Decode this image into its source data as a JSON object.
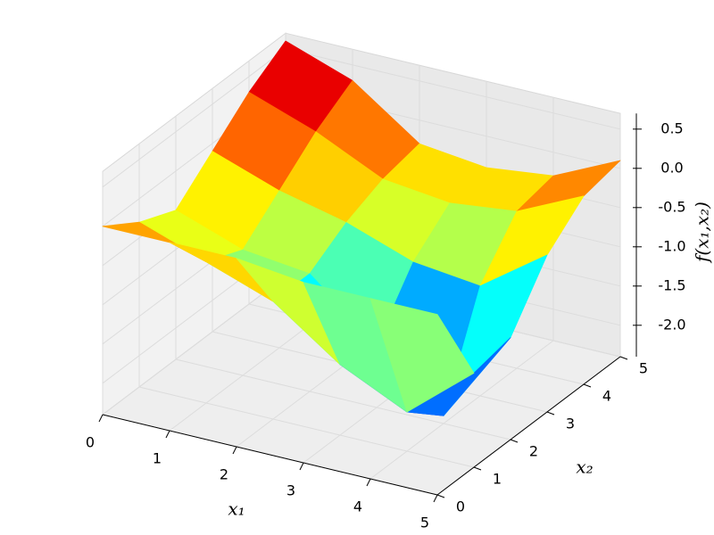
{
  "chart_data": {
    "type": "surface",
    "x_label": "x₁",
    "y_label": "x₂",
    "z_label": "f(x₁,x₂)",
    "x": [
      0,
      1,
      2,
      3,
      4,
      5
    ],
    "y": [
      0,
      1,
      2,
      3,
      4,
      5
    ],
    "z": [
      [
        0.0,
        0.0,
        0.0,
        -0.1,
        -0.1,
        -0.1
      ],
      [
        -0.3,
        -0.6,
        -0.9,
        -1.5,
        -1.9,
        -1.2
      ],
      [
        -0.5,
        -0.8,
        -0.9,
        -1.6,
        -2.3,
        -1.1
      ],
      [
        -0.1,
        -0.4,
        -0.6,
        -0.9,
        -1.0,
        -0.4
      ],
      [
        0.3,
        0.0,
        -0.4,
        -0.5,
        -0.4,
        0.0
      ],
      [
        0.6,
        0.3,
        -0.3,
        -0.4,
        -0.3,
        0.1
      ]
    ],
    "xlim": [
      0,
      5
    ],
    "ylim": [
      0,
      5
    ],
    "zlim": [
      -2.4,
      0.7
    ],
    "xticks": [
      0,
      1,
      2,
      3,
      4,
      5
    ],
    "yticks": [
      0,
      1,
      2,
      3,
      4,
      5
    ],
    "zticks": [
      {
        "value": -2,
        "label": "-2.0"
      },
      {
        "value": -1.5,
        "label": "-1.5"
      },
      {
        "value": -1,
        "label": "-1.0"
      },
      {
        "value": -0.5,
        "label": "-0.5"
      },
      {
        "value": 0,
        "label": "0.0"
      },
      {
        "value": 0.5,
        "label": "0.5"
      }
    ],
    "colormap": "jet",
    "grid": true
  }
}
